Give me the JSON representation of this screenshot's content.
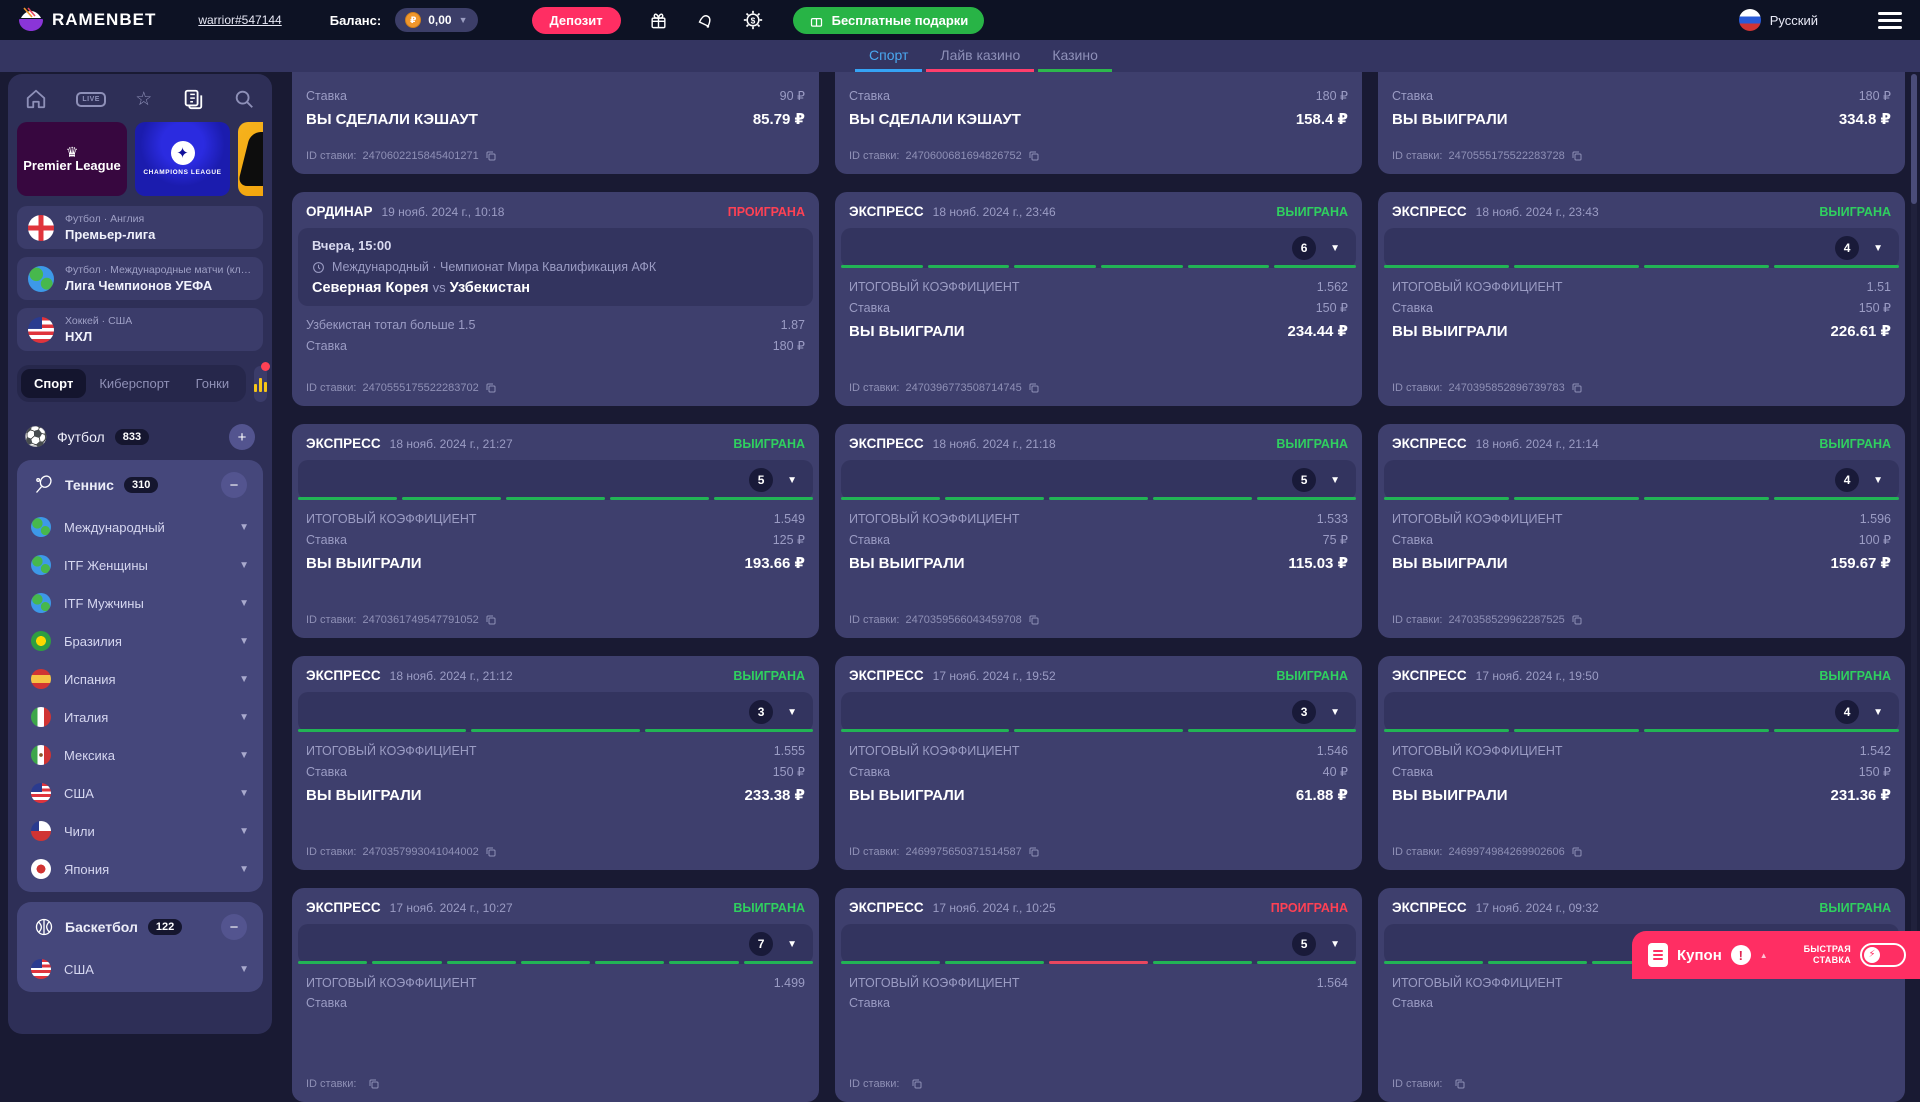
{
  "header": {
    "brand": "RAMENBET",
    "username": "warrior#547144",
    "balance_label": "Баланс:",
    "balance_value": "0,00",
    "currency_symbol": "₽",
    "deposit_label": "Депозит",
    "free_gifts_label": "Бесплатные подарки",
    "language": "Русский"
  },
  "colors": {
    "accent_pink": "#ff2e63",
    "win_green": "#2fd05f",
    "lose_red": "#ff4154",
    "tab_blue": "#35a3f5",
    "tab_pink": "#ff3e6c",
    "tab_green": "#2db84d",
    "free_gifts_green": "#28b446",
    "coin_orange": "#f0972d",
    "segment_green": "#22b455",
    "segment_red": "#e8475f"
  },
  "tabs": [
    {
      "label": "Спорт",
      "active": true
    },
    {
      "label": "Лайв казино",
      "active": false
    },
    {
      "label": "Казино",
      "active": false
    }
  ],
  "sidebar": {
    "nav_icons": [
      "home",
      "live",
      "favorites",
      "my-bets",
      "search"
    ],
    "banners": [
      {
        "crown": "♛",
        "title": "Premier League"
      },
      {
        "ball": "✦",
        "title": "CHAMPIONS LEAGUE"
      },
      {
        "title": ""
      }
    ],
    "quick_links": [
      {
        "category": "Футбол · Англия",
        "league": "Премьер-лига",
        "flag": "england"
      },
      {
        "category": "Футбол · Международные матчи (клубы)",
        "league": "Лига Чемпионов УЕФА",
        "flag": "globe"
      },
      {
        "category": "Хоккей · США",
        "league": "НХЛ",
        "flag": "usa"
      }
    ],
    "modes": [
      {
        "label": "Спорт",
        "active": true
      },
      {
        "label": "Киберспорт",
        "active": false
      },
      {
        "label": "Гонки",
        "active": false
      }
    ],
    "football": {
      "name": "Футбол",
      "count": "833",
      "toggle": "+",
      "icon": "⚽"
    },
    "tennis": {
      "name": "Теннис",
      "count": "310",
      "toggle": "−",
      "children": [
        {
          "label": "Международный",
          "flag": "globe"
        },
        {
          "label": "ITF Женщины",
          "flag": "globe"
        },
        {
          "label": "ITF Мужчины",
          "flag": "globe"
        },
        {
          "label": "Бразилия",
          "flag": "brazil"
        },
        {
          "label": "Испания",
          "flag": "spain"
        },
        {
          "label": "Италия",
          "flag": "italy"
        },
        {
          "label": "Мексика",
          "flag": "mexico"
        },
        {
          "label": "США",
          "flag": "usa"
        },
        {
          "label": "Чили",
          "flag": "chile"
        },
        {
          "label": "Япония",
          "flag": "japan"
        }
      ]
    },
    "basketball": {
      "name": "Баскетбол",
      "count": "122",
      "toggle": "−",
      "children": [
        {
          "label": "США",
          "flag": "usa"
        }
      ]
    }
  },
  "labels": {
    "coef": "ИТОГОВЫЙ КОЭФФИЦИЕНТ",
    "stake": "Ставка",
    "id": "ID ставки:",
    "vs": "vs"
  },
  "cards": [
    {
      "kind": "tail",
      "stake": "90 ₽",
      "result_label": "ВЫ СДЕЛАЛИ КЭШАУТ",
      "result": "85.79 ₽",
      "bet_id": "2470602215845401271"
    },
    {
      "kind": "tail",
      "stake": "180 ₽",
      "result_label": "ВЫ СДЕЛАЛИ КЭШАУТ",
      "result": "158.4 ₽",
      "bet_id": "2470600681694826752"
    },
    {
      "kind": "tail",
      "stake": "180 ₽",
      "result_label": "ВЫ ВЫИГРАЛИ",
      "result": "334.8 ₽",
      "bet_id": "2470555175522283728"
    },
    {
      "kind": "ordinar",
      "type": "ОРДИНАР",
      "date": "19 нояб. 2024 г., 10:18",
      "status": "ПРОИГРАНА",
      "status_type": "lose",
      "match_time": "Вчера, 15:00",
      "match_league": "Международный · Чемпионат Мира Квалификация АФК",
      "team1": "Северная Корея",
      "team2": "Узбекистан",
      "outcome": "Узбекистан тотал больше 1.5",
      "odds": "1.87",
      "stake": "180 ₽",
      "bet_id": "2470555175522283702"
    },
    {
      "kind": "express",
      "type": "ЭКСПРЕСС",
      "date": "18 нояб. 2024 г., 23:46",
      "status": "ВЫИГРАНА",
      "status_type": "win",
      "count": "6",
      "segments": [
        "w",
        "w",
        "w",
        "w",
        "w",
        "w"
      ],
      "coef": "1.562",
      "stake": "150 ₽",
      "result_label": "ВЫ ВЫИГРАЛИ",
      "result": "234.44 ₽",
      "bet_id": "2470396773508714745"
    },
    {
      "kind": "express",
      "type": "ЭКСПРЕСС",
      "date": "18 нояб. 2024 г., 23:43",
      "status": "ВЫИГРАНА",
      "status_type": "win",
      "count": "4",
      "segments": [
        "w",
        "w",
        "w",
        "w"
      ],
      "coef": "1.51",
      "stake": "150 ₽",
      "result_label": "ВЫ ВЫИГРАЛИ",
      "result": "226.61 ₽",
      "bet_id": "2470395852896739783"
    },
    {
      "kind": "express",
      "type": "ЭКСПРЕСС",
      "date": "18 нояб. 2024 г., 21:27",
      "status": "ВЫИГРАНА",
      "status_type": "win",
      "count": "5",
      "segments": [
        "w",
        "w",
        "w",
        "w",
        "w"
      ],
      "coef": "1.549",
      "stake": "125 ₽",
      "result_label": "ВЫ ВЫИГРАЛИ",
      "result": "193.66 ₽",
      "bet_id": "2470361749547791052"
    },
    {
      "kind": "express",
      "type": "ЭКСПРЕСС",
      "date": "18 нояб. 2024 г., 21:18",
      "status": "ВЫИГРАНА",
      "status_type": "win",
      "count": "5",
      "segments": [
        "w",
        "w",
        "w",
        "w",
        "w"
      ],
      "coef": "1.533",
      "stake": "75 ₽",
      "result_label": "ВЫ ВЫИГРАЛИ",
      "result": "115.03 ₽",
      "bet_id": "2470359566043459708"
    },
    {
      "kind": "express",
      "type": "ЭКСПРЕСС",
      "date": "18 нояб. 2024 г., 21:14",
      "status": "ВЫИГРАНА",
      "status_type": "win",
      "count": "4",
      "segments": [
        "w",
        "w",
        "w",
        "w"
      ],
      "coef": "1.596",
      "stake": "100 ₽",
      "result_label": "ВЫ ВЫИГРАЛИ",
      "result": "159.67 ₽",
      "bet_id": "2470358529962287525"
    },
    {
      "kind": "express",
      "type": "ЭКСПРЕСС",
      "date": "18 нояб. 2024 г., 21:12",
      "status": "ВЫИГРАНА",
      "status_type": "win",
      "count": "3",
      "segments": [
        "w",
        "w",
        "w"
      ],
      "coef": "1.555",
      "stake": "150 ₽",
      "result_label": "ВЫ ВЫИГРАЛИ",
      "result": "233.38 ₽",
      "bet_id": "2470357993041044002"
    },
    {
      "kind": "express",
      "type": "ЭКСПРЕСС",
      "date": "17 нояб. 2024 г., 19:52",
      "status": "ВЫИГРАНА",
      "status_type": "win",
      "count": "3",
      "segments": [
        "w",
        "w",
        "w"
      ],
      "coef": "1.546",
      "stake": "40 ₽",
      "result_label": "ВЫ ВЫИГРАЛИ",
      "result": "61.88 ₽",
      "bet_id": "2469975650371514587"
    },
    {
      "kind": "express",
      "type": "ЭКСПРЕСС",
      "date": "17 нояб. 2024 г., 19:50",
      "status": "ВЫИГРАНА",
      "status_type": "win",
      "count": "4",
      "segments": [
        "w",
        "w",
        "w",
        "w"
      ],
      "coef": "1.542",
      "stake": "150 ₽",
      "result_label": "ВЫ ВЫИГРАЛИ",
      "result": "231.36 ₽",
      "bet_id": "2469974984269902606"
    },
    {
      "kind": "express_partial",
      "type": "ЭКСПРЕСС",
      "date": "17 нояб. 2024 г., 10:27",
      "status": "ВЫИГРАНА",
      "status_type": "win",
      "count": "7",
      "segments": [
        "w",
        "w",
        "w",
        "w",
        "w",
        "w",
        "w"
      ],
      "coef": "1.499"
    },
    {
      "kind": "express_partial",
      "type": "ЭКСПРЕСС",
      "date": "17 нояб. 2024 г., 10:25",
      "status": "ПРОИГРАНА",
      "status_type": "lose",
      "count": "5",
      "segments": [
        "w",
        "w",
        "l",
        "w",
        "w"
      ],
      "coef": "1.564"
    },
    {
      "kind": "express_partial",
      "type": "ЭКСПРЕСС",
      "date": "17 нояб. 2024 г., 09:32",
      "status": "ВЫИГРАНА",
      "status_type": "win",
      "count": "5",
      "segments": [
        "w",
        "w",
        "w",
        "w",
        "w"
      ],
      "coef": ""
    }
  ],
  "coupon": {
    "label": "Купон",
    "alert": "!",
    "quick_label": "БЫСТРАЯ СТАВКА"
  }
}
